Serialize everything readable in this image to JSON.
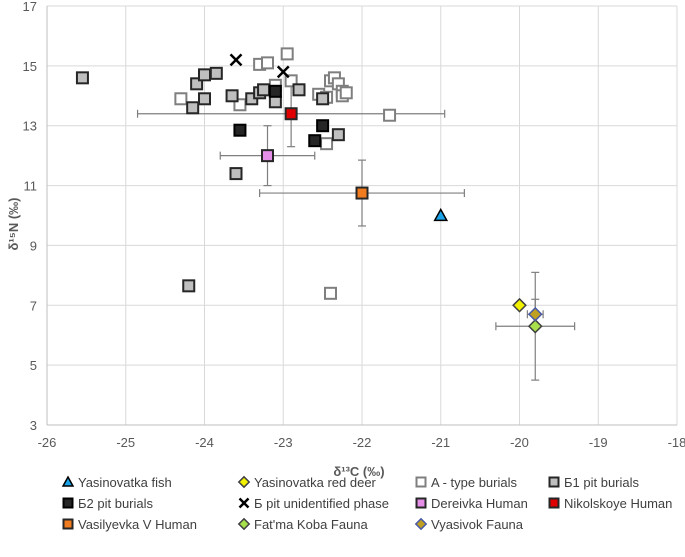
{
  "chart_data": {
    "type": "scatter",
    "xlabel": "δ¹³C (‰)",
    "ylabel": "δ¹⁵N (‰)",
    "xlim": [
      -26,
      -18
    ],
    "ylim": [
      3,
      17
    ],
    "x_ticks": [
      "-26",
      "-25",
      "-24",
      "-23",
      "-22",
      "-21",
      "-20",
      "-19",
      "-18"
    ],
    "y_ticks": [
      "3",
      "5",
      "7",
      "9",
      "11",
      "13",
      "15",
      "17"
    ],
    "grid": "vertical gridlines at each x tick, horizontal gridlines at each y tick",
    "legend_position": "bottom",
    "series": [
      {
        "name": "Yasinovatka fish",
        "marker": "triangle",
        "fill": "#1aa3e8",
        "stroke": "#000000",
        "points": [
          [
            -21.0,
            10.0
          ]
        ]
      },
      {
        "name": "Yasinovatka red deer",
        "marker": "diamond",
        "fill": "#f2f200",
        "stroke": "#404040",
        "points": [
          [
            -20.0,
            7.0
          ]
        ]
      },
      {
        "name": "A - type burials",
        "marker": "square",
        "fill": "#ffffff",
        "stroke": "#7f7f7f",
        "points": [
          [
            -24.3,
            13.9
          ],
          [
            -23.55,
            13.7
          ],
          [
            -23.3,
            15.05
          ],
          [
            -23.2,
            15.1
          ],
          [
            -23.1,
            14.35
          ],
          [
            -22.95,
            15.4
          ],
          [
            -22.9,
            14.5
          ],
          [
            -22.55,
            14.05
          ],
          [
            -22.45,
            13.95
          ],
          [
            -22.4,
            14.5
          ],
          [
            -22.35,
            14.6
          ],
          [
            -22.3,
            14.4
          ],
          [
            -22.25,
            14.15
          ],
          [
            -22.25,
            14.0
          ],
          [
            -22.2,
            14.1
          ],
          [
            -22.45,
            12.4
          ],
          [
            -21.65,
            13.35
          ],
          [
            -22.4,
            7.4
          ]
        ]
      },
      {
        "name": "Б1 pit burials",
        "marker": "square",
        "fill": "#bfbfbf",
        "stroke": "#262626",
        "points": [
          [
            -25.55,
            14.6
          ],
          [
            -24.15,
            13.6
          ],
          [
            -24.1,
            14.4
          ],
          [
            -24.0,
            14.7
          ],
          [
            -24.0,
            13.9
          ],
          [
            -23.85,
            14.75
          ],
          [
            -23.65,
            14.0
          ],
          [
            -23.6,
            11.4
          ],
          [
            -23.4,
            13.9
          ],
          [
            -23.3,
            14.1
          ],
          [
            -23.25,
            14.2
          ],
          [
            -23.1,
            13.8
          ],
          [
            -22.8,
            14.2
          ],
          [
            -22.5,
            13.9
          ],
          [
            -22.3,
            12.7
          ],
          [
            -24.2,
            7.65
          ]
        ]
      },
      {
        "name": "Б2 pit burials",
        "marker": "square",
        "fill": "#262626",
        "stroke": "#000000",
        "points": [
          [
            -23.1,
            14.15
          ],
          [
            -23.55,
            12.85
          ],
          [
            -22.6,
            12.5
          ],
          [
            -22.5,
            13.0
          ]
        ]
      },
      {
        "name": "Б pit unidentified phase",
        "marker": "x",
        "fill": "none",
        "stroke": "#000000",
        "points": [
          [
            -23.6,
            15.2
          ],
          [
            -23.0,
            14.8
          ]
        ]
      },
      {
        "name": "Dereivka Human",
        "marker": "square",
        "fill": "#e58fe8",
        "stroke": "#262626",
        "points": [
          [
            -23.2,
            12.0
          ]
        ],
        "error": {
          "x": [
            [
              -23.8,
              -22.6
            ]
          ],
          "y": [
            [
              11.0,
              13.0
            ]
          ]
        }
      },
      {
        "name": "Nikolskoye Human",
        "marker": "square",
        "fill": "#e00000",
        "stroke": "#262626",
        "points": [
          [
            -22.9,
            13.4
          ]
        ],
        "error": {
          "x": [
            [
              -24.85,
              -20.95
            ]
          ],
          "y": [
            [
              12.3,
              14.5
            ]
          ]
        }
      },
      {
        "name": "Vasilyevka V Human",
        "marker": "square",
        "fill": "#f07c1f",
        "stroke": "#262626",
        "points": [
          [
            -22.0,
            10.75
          ]
        ],
        "error": {
          "x": [
            [
              -23.3,
              -20.7
            ]
          ],
          "y": [
            [
              9.65,
              11.85
            ]
          ]
        }
      },
      {
        "name": "Fat'ma Koba Fauna",
        "marker": "diamond",
        "fill": "#a8e04c",
        "stroke": "#404040",
        "points": [
          [
            -19.8,
            6.3
          ]
        ],
        "error": {
          "x": [
            [
              -20.3,
              -19.3
            ]
          ],
          "y": [
            [
              4.5,
              8.1
            ]
          ]
        }
      },
      {
        "name": "Vyasivok Fauna",
        "marker": "diamond",
        "fill": "#c0a020",
        "stroke": "#4a5aa8",
        "points": [
          [
            -19.8,
            6.7
          ]
        ],
        "error": {
          "x": [
            [
              -19.9,
              -19.7
            ]
          ],
          "y": [
            [
              6.2,
              7.2
            ]
          ]
        }
      }
    ]
  }
}
